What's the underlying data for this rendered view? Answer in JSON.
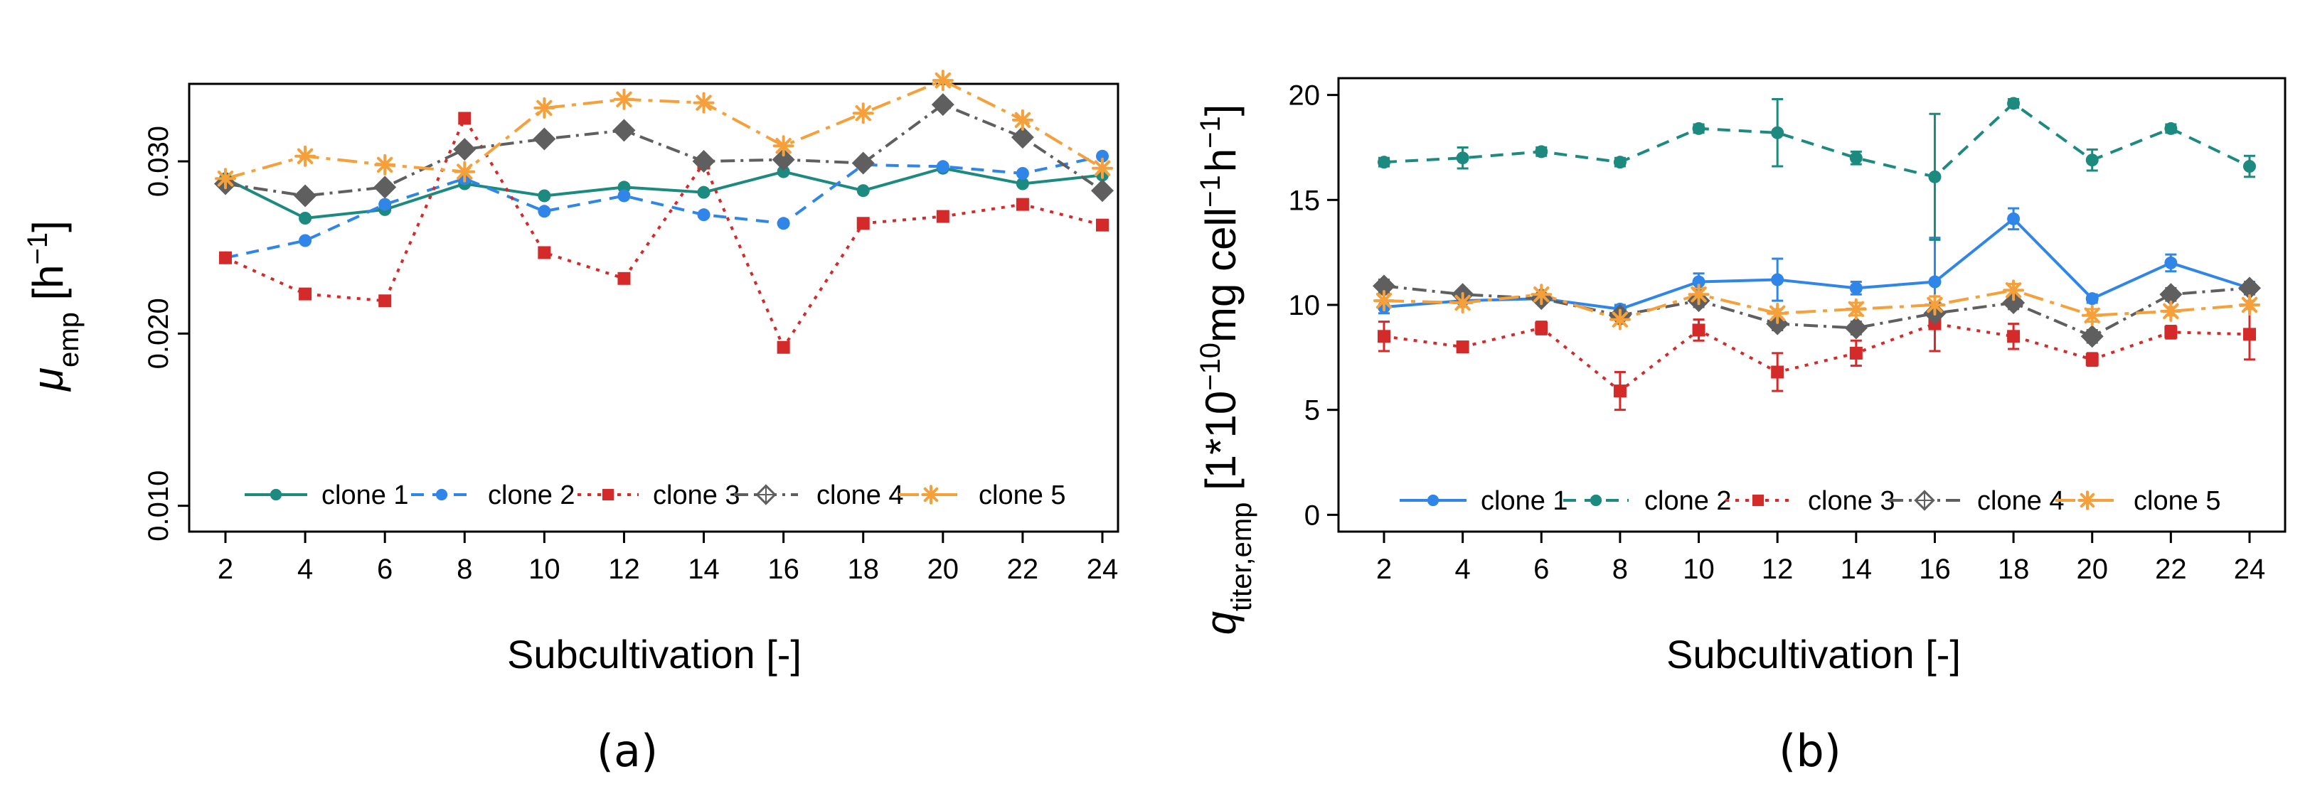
{
  "colors": {
    "clone1": "#1d8a80",
    "clone2": "#2f86e8",
    "clone3": "#d42a2a",
    "clone4": "#5f5f5f",
    "clone5": "#f5a03a"
  },
  "chart_data": [
    {
      "type": "line",
      "panel_label": "(a)",
      "xlabel": "Subcultivation [-]",
      "ylabel_main": "μ",
      "ylabel_sub": "emp",
      "ylabel_unit_open": " [h",
      "ylabel_unit_exp": "−1",
      "ylabel_unit_close": "]",
      "x": [
        2,
        4,
        6,
        8,
        10,
        12,
        14,
        16,
        18,
        20,
        22,
        24
      ],
      "x_ticks": [
        "2",
        "4",
        "6",
        "8",
        "10",
        "12",
        "14",
        "16",
        "18",
        "20",
        "22",
        "24"
      ],
      "ylim": [
        0.0085,
        0.0345
      ],
      "y_ticks": [
        "0.010",
        "0.020",
        "0.030"
      ],
      "y_tick_values": [
        0.01,
        0.02,
        0.03
      ],
      "series": [
        {
          "name": "clone 1",
          "key": "clone1",
          "marker": "circle",
          "dash": "solid",
          "values": [
            0.029,
            0.0267,
            0.0272,
            0.0287,
            0.028,
            0.0285,
            0.0282,
            0.0294,
            0.0283,
            0.0296,
            0.0287,
            0.0292
          ],
          "err": []
        },
        {
          "name": "clone 2",
          "key": "clone2",
          "marker": "circle",
          "dash": "dashed",
          "values": [
            0.0244,
            0.0254,
            0.0275,
            0.029,
            0.0271,
            0.028,
            0.0269,
            0.0264,
            0.0298,
            0.0297,
            0.0293,
            0.0303
          ],
          "err": []
        },
        {
          "name": "clone 3",
          "key": "clone3",
          "marker": "square",
          "dash": "dotted",
          "values": [
            0.0244,
            0.0223,
            0.0219,
            0.0325,
            0.0247,
            0.0232,
            0.0299,
            0.0192,
            0.0264,
            0.0268,
            0.0275,
            0.0263
          ],
          "err": []
        },
        {
          "name": "clone 4",
          "key": "clone4",
          "marker": "diamond",
          "dash": "dashdot",
          "values": [
            0.0287,
            0.028,
            0.0285,
            0.0307,
            0.0313,
            0.0318,
            0.03,
            0.0301,
            0.0299,
            0.0333,
            0.0314,
            0.0283
          ],
          "err": []
        },
        {
          "name": "clone 5",
          "key": "clone5",
          "marker": "star",
          "dash": "longdash",
          "values": [
            0.029,
            0.0303,
            0.0298,
            0.0294,
            0.0331,
            0.0336,
            0.0334,
            0.0309,
            0.0328,
            0.0347,
            0.0324,
            0.0296
          ],
          "err": []
        }
      ],
      "legend": {
        "position": "bottom",
        "order": [
          "clone1",
          "clone2",
          "clone3",
          "clone4",
          "clone5"
        ]
      }
    },
    {
      "type": "line",
      "panel_label": "(b)",
      "xlabel": "Subcultivation [-]",
      "ylabel_main": "q",
      "ylabel_sub": "titer,emp",
      "ylabel_unit_a": " [1*10",
      "ylabel_unit_exp1": "−10",
      "ylabel_unit_b": "mg cell",
      "ylabel_unit_exp2": "−1",
      "ylabel_unit_c": "h",
      "ylabel_unit_exp3": "−1",
      "ylabel_unit_close": "]",
      "x": [
        2,
        4,
        6,
        8,
        10,
        12,
        14,
        16,
        18,
        20,
        22,
        24
      ],
      "x_ticks": [
        "2",
        "4",
        "6",
        "8",
        "10",
        "12",
        "14",
        "16",
        "18",
        "20",
        "22",
        "24"
      ],
      "ylim": [
        -0.8,
        20.8
      ],
      "y_ticks": [
        "0",
        "5",
        "10",
        "15",
        "20"
      ],
      "y_tick_values": [
        0,
        5,
        10,
        15,
        20
      ],
      "series": [
        {
          "name": "clone 1",
          "key": "clone2",
          "marker": "circle",
          "dash": "solid",
          "values": [
            9.9,
            10.2,
            10.3,
            9.8,
            11.1,
            11.2,
            10.8,
            11.1,
            14.1,
            10.3,
            12.0,
            10.8
          ],
          "err": [
            0.3,
            0.3,
            0.2,
            0.2,
            0.4,
            1.0,
            0.3,
            2.1,
            0.5,
            0.2,
            0.4,
            0.3
          ]
        },
        {
          "name": "clone 2",
          "key": "clone1",
          "marker": "circle",
          "dash": "dashed",
          "values": [
            16.8,
            17.0,
            17.3,
            16.8,
            18.4,
            18.2,
            17.0,
            16.1,
            19.6,
            16.9,
            18.4,
            16.6
          ],
          "err": [
            0.2,
            0.5,
            0.2,
            0.2,
            0.2,
            1.6,
            0.3,
            3.0,
            0.2,
            0.5,
            0.2,
            0.5
          ]
        },
        {
          "name": "clone 3",
          "key": "clone3",
          "marker": "square",
          "dash": "dotted",
          "values": [
            8.5,
            8.0,
            8.9,
            5.9,
            8.8,
            6.8,
            7.7,
            9.1,
            8.5,
            7.4,
            8.7,
            8.6
          ],
          "err": [
            0.7,
            0.2,
            0.3,
            0.9,
            0.5,
            0.9,
            0.6,
            1.3,
            0.6,
            0.3,
            0.3,
            1.2
          ]
        },
        {
          "name": "clone 4",
          "key": "clone4",
          "marker": "diamond",
          "dash": "dashdot",
          "values": [
            10.9,
            10.5,
            10.3,
            9.5,
            10.2,
            9.1,
            8.9,
            9.6,
            10.1,
            8.5,
            10.5,
            10.8
          ],
          "err": [
            0.3,
            0.2,
            0.2,
            0.2,
            0.3,
            0.3,
            0.3,
            0.5,
            0.3,
            0.3,
            0.3,
            0.2
          ]
        },
        {
          "name": "clone 5",
          "key": "clone5",
          "marker": "star",
          "dash": "longdash",
          "values": [
            10.2,
            10.1,
            10.5,
            9.3,
            10.5,
            9.6,
            9.8,
            10.0,
            10.7,
            9.5,
            9.7,
            10.0
          ],
          "err": [
            0.3,
            0.2,
            0.2,
            0.2,
            0.3,
            0.2,
            0.3,
            0.4,
            0.3,
            0.3,
            0.2,
            0.2
          ]
        }
      ],
      "legend": {
        "position": "bottom",
        "order": [
          "clone2",
          "clone1",
          "clone3",
          "clone4",
          "clone5"
        ]
      }
    }
  ]
}
